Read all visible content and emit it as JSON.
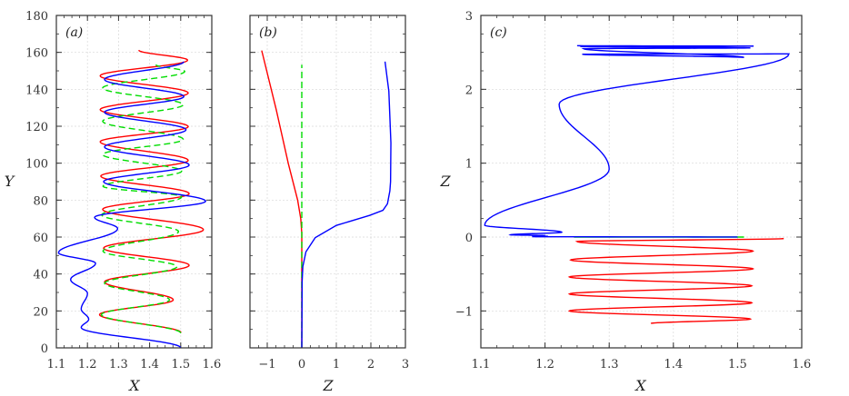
{
  "chart_data": [
    {
      "type": "line",
      "panel_label": "(a)",
      "xlabel": "X",
      "ylabel": "Y",
      "xlim": [
        1.1,
        1.6
      ],
      "ylim": [
        0,
        180
      ],
      "xticks": [
        "1.1",
        "1.2",
        "1.3",
        "1.4",
        "1.5",
        "1.6"
      ],
      "yticks": [
        "0",
        "20",
        "40",
        "60",
        "80",
        "100",
        "120",
        "140",
        "160",
        "180"
      ],
      "grid": true,
      "series": [
        {
          "color": "#ff0000",
          "dashed": false,
          "points": [
            [
              1.501,
              8.2
            ],
            [
              1.239,
              18
            ],
            [
              1.476,
              26
            ],
            [
              1.255,
              35.7
            ],
            [
              1.527,
              44.7
            ],
            [
              1.252,
              54
            ],
            [
              1.573,
              64
            ],
            [
              1.249,
              75
            ],
            [
              1.527,
              83.5
            ],
            [
              1.243,
              93
            ],
            [
              1.524,
              101.5
            ],
            [
              1.241,
              111.6
            ],
            [
              1.524,
              119.8
            ],
            [
              1.241,
              129
            ],
            [
              1.524,
              138
            ],
            [
              1.241,
              147.3
            ],
            [
              1.522,
              155.8
            ],
            [
              1.365,
              161.2
            ]
          ]
        },
        {
          "color": "#00dd00",
          "dashed": true,
          "points": [
            [
              1.5,
              8
            ],
            [
              1.245,
              18
            ],
            [
              1.464,
              26
            ],
            [
              1.255,
              35
            ],
            [
              1.488,
              44
            ],
            [
              1.25,
              52.4
            ],
            [
              1.493,
              63
            ],
            [
              1.246,
              72
            ],
            [
              1.503,
              81.8
            ],
            [
              1.25,
              87.5
            ],
            [
              1.503,
              95.7
            ],
            [
              1.249,
              104.7
            ],
            [
              1.508,
              112.9
            ],
            [
              1.249,
              122.7
            ],
            [
              1.508,
              131.7
            ],
            [
              1.249,
              140.7
            ],
            [
              1.513,
              149.7
            ],
            [
              1.42,
              153.3
            ]
          ]
        },
        {
          "color": "#0000ff",
          "dashed": false,
          "points": [
            [
              1.5,
              0
            ],
            [
              1.18,
              11
            ],
            [
              1.204,
              15.5
            ],
            [
              1.18,
              21
            ],
            [
              1.2,
              29.5
            ],
            [
              1.146,
              37
            ],
            [
              1.226,
              45.8
            ],
            [
              1.107,
              51.5
            ],
            [
              1.297,
              64.6
            ],
            [
              1.223,
              70.7
            ],
            [
              1.58,
              79.4
            ],
            [
              1.252,
              90
            ],
            [
              1.527,
              99
            ],
            [
              1.255,
              108.8
            ],
            [
              1.517,
              118.1
            ],
            [
              1.255,
              127.6
            ],
            [
              1.51,
              136.1
            ],
            [
              1.255,
              145.3
            ],
            [
              1.51,
              155
            ]
          ]
        }
      ]
    },
    {
      "type": "line",
      "panel_label": "(b)",
      "xlabel": "Z",
      "ylabel": "",
      "xlim": [
        -1.5,
        3
      ],
      "ylim": [
        0,
        180
      ],
      "xticks": [
        "−1",
        "0",
        "1",
        "2",
        "3"
      ],
      "yticks": [],
      "grid": true,
      "series": [
        {
          "color": "#ff0000",
          "dashed": false,
          "points": [
            [
              0,
              0
            ],
            [
              0,
              62
            ],
            [
              -0.03,
              70
            ],
            [
              -0.12,
              80
            ],
            [
              -0.39,
              99.8
            ],
            [
              -0.74,
              129
            ],
            [
              -1.16,
              161
            ]
          ]
        },
        {
          "color": "#00dd00",
          "dashed": true,
          "points": [
            [
              0,
              0
            ],
            [
              0,
              153.3
            ]
          ]
        },
        {
          "color": "#0000ff",
          "dashed": false,
          "points": [
            [
              0,
              0
            ],
            [
              0.01,
              36
            ],
            [
              0.03,
              44
            ],
            [
              0.12,
              52
            ],
            [
              0.39,
              59.7
            ],
            [
              1.0,
              66.3
            ],
            [
              1.96,
              71.7
            ],
            [
              2.35,
              74.5
            ],
            [
              2.48,
              78
            ],
            [
              2.55,
              85
            ],
            [
              2.57,
              90
            ],
            [
              2.58,
              111
            ],
            [
              2.52,
              139
            ],
            [
              2.41,
              155
            ]
          ]
        }
      ]
    },
    {
      "type": "line",
      "panel_label": "(c)",
      "xlabel": "X",
      "ylabel": "Z",
      "xlim": [
        1.1,
        1.6
      ],
      "ylim": [
        -1.5,
        3
      ],
      "xticks": [
        "1.1",
        "1.2",
        "1.3",
        "1.4",
        "1.5",
        "1.6"
      ],
      "yticks": [
        "−1",
        "0",
        "1",
        "2",
        "3"
      ],
      "grid": true,
      "series": [
        {
          "color": "#ff0000",
          "dashed": false,
          "points": [
            [
              1.572,
              -0.02
            ],
            [
              1.25,
              -0.06
            ],
            [
              1.524,
              -0.19
            ],
            [
              1.24,
              -0.31
            ],
            [
              1.524,
              -0.43
            ],
            [
              1.238,
              -0.54
            ],
            [
              1.522,
              -0.66
            ],
            [
              1.238,
              -0.77
            ],
            [
              1.522,
              -0.89
            ],
            [
              1.238,
              -1.0
            ],
            [
              1.52,
              -1.11
            ],
            [
              1.365,
              -1.17
            ]
          ]
        },
        {
          "color": "#00dd00",
          "dashed": false,
          "points": [
            [
              1.245,
              0
            ],
            [
              1.51,
              0
            ]
          ]
        },
        {
          "color": "#0000ff",
          "dashed": false,
          "points": [
            [
              1.5,
              0
            ],
            [
              1.18,
              0.005
            ],
            [
              1.204,
              0.01
            ],
            [
              1.18,
              0.02
            ],
            [
              1.2,
              0.02
            ],
            [
              1.146,
              0.03
            ],
            [
              1.226,
              0.065
            ],
            [
              1.106,
              0.16
            ],
            [
              1.3,
              0.92
            ],
            [
              1.222,
              1.8
            ],
            [
              1.58,
              2.48
            ],
            [
              1.258,
              2.475
            ],
            [
              1.51,
              2.43
            ],
            [
              1.26,
              2.55
            ],
            [
              1.52,
              2.56
            ],
            [
              1.255,
              2.58
            ],
            [
              1.525,
              2.585
            ],
            [
              1.25,
              2.59
            ]
          ]
        }
      ]
    }
  ]
}
